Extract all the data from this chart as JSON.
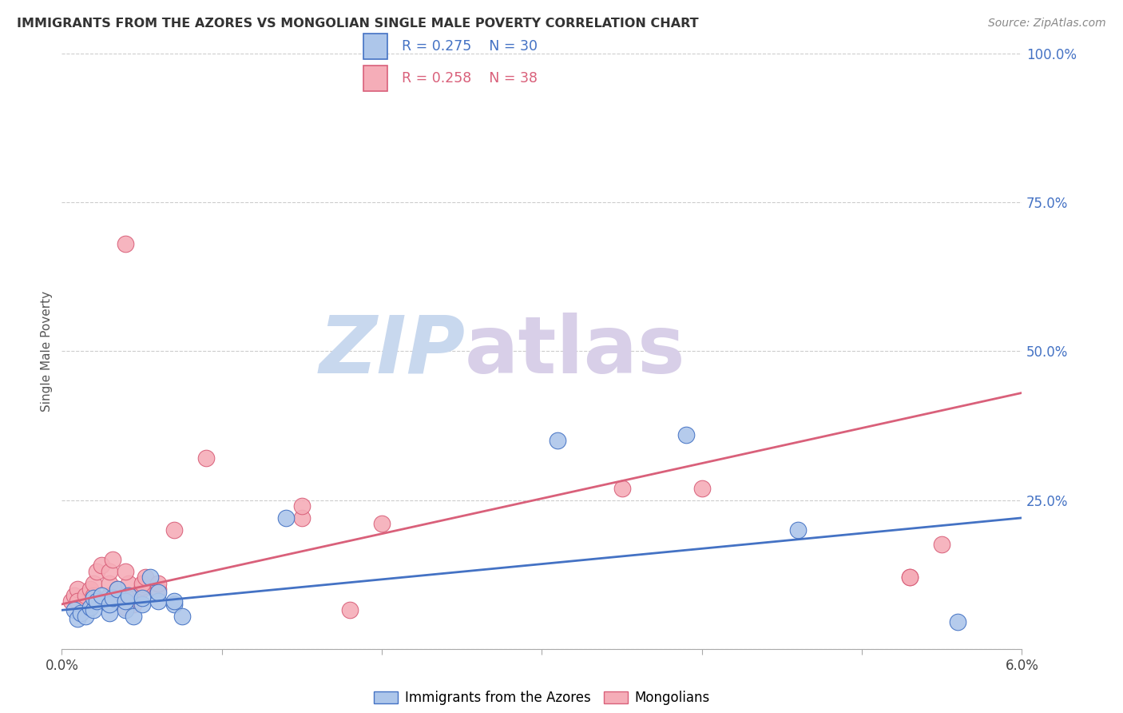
{
  "title": "IMMIGRANTS FROM THE AZORES VS MONGOLIAN SINGLE MALE POVERTY CORRELATION CHART",
  "source": "Source: ZipAtlas.com",
  "ylabel": "Single Male Poverty",
  "xlim": [
    0.0,
    0.06
  ],
  "ylim": [
    0.0,
    1.0
  ],
  "legend_blue_R": "R = 0.275",
  "legend_blue_N": "N = 30",
  "legend_pink_R": "R = 0.258",
  "legend_pink_N": "N = 38",
  "legend_label_blue": "Immigrants from the Azores",
  "legend_label_pink": "Mongolians",
  "blue_color": "#adc6ea",
  "pink_color": "#f5adb8",
  "blue_line_color": "#4472c4",
  "pink_line_color": "#d9607a",
  "watermark_zip": "ZIP",
  "watermark_atlas": "atlas",
  "watermark_color_zip": "#c8d8ee",
  "watermark_color_atlas": "#d8cfe8",
  "y_tick_vals": [
    0.0,
    0.25,
    0.5,
    0.75,
    1.0
  ],
  "y_tick_labels": [
    "",
    "25.0%",
    "50.0%",
    "75.0%",
    "100.0%"
  ],
  "blue_x": [
    0.0008,
    0.001,
    0.0012,
    0.0015,
    0.0018,
    0.002,
    0.002,
    0.0022,
    0.0025,
    0.003,
    0.003,
    0.0032,
    0.0035,
    0.004,
    0.004,
    0.0042,
    0.0045,
    0.005,
    0.005,
    0.0055,
    0.006,
    0.006,
    0.007,
    0.007,
    0.0075,
    0.014,
    0.031,
    0.039,
    0.046,
    0.056
  ],
  "blue_y": [
    0.065,
    0.05,
    0.06,
    0.055,
    0.07,
    0.065,
    0.085,
    0.08,
    0.09,
    0.06,
    0.075,
    0.085,
    0.1,
    0.065,
    0.08,
    0.09,
    0.055,
    0.075,
    0.085,
    0.12,
    0.08,
    0.095,
    0.075,
    0.08,
    0.055,
    0.22,
    0.35,
    0.36,
    0.2,
    0.045
  ],
  "pink_x": [
    0.0006,
    0.0008,
    0.001,
    0.001,
    0.0015,
    0.0018,
    0.002,
    0.002,
    0.0022,
    0.0025,
    0.003,
    0.003,
    0.003,
    0.0032,
    0.0035,
    0.004,
    0.004,
    0.0042,
    0.004,
    0.0045,
    0.005,
    0.005,
    0.005,
    0.0052,
    0.006,
    0.006,
    0.007,
    0.009,
    0.015,
    0.015,
    0.018,
    0.02,
    0.035,
    0.04,
    0.053,
    0.053,
    0.055,
    0.004
  ],
  "pink_y": [
    0.08,
    0.09,
    0.1,
    0.08,
    0.09,
    0.1,
    0.09,
    0.11,
    0.13,
    0.14,
    0.09,
    0.11,
    0.13,
    0.15,
    0.1,
    0.07,
    0.09,
    0.11,
    0.13,
    0.075,
    0.1,
    0.105,
    0.11,
    0.12,
    0.1,
    0.11,
    0.2,
    0.32,
    0.22,
    0.24,
    0.065,
    0.21,
    0.27,
    0.27,
    0.12,
    0.12,
    0.175,
    0.68
  ],
  "blue_trend_x": [
    0.0,
    0.06
  ],
  "blue_trend_y": [
    0.065,
    0.22
  ],
  "pink_trend_x": [
    0.0,
    0.06
  ],
  "pink_trend_y": [
    0.075,
    0.43
  ]
}
